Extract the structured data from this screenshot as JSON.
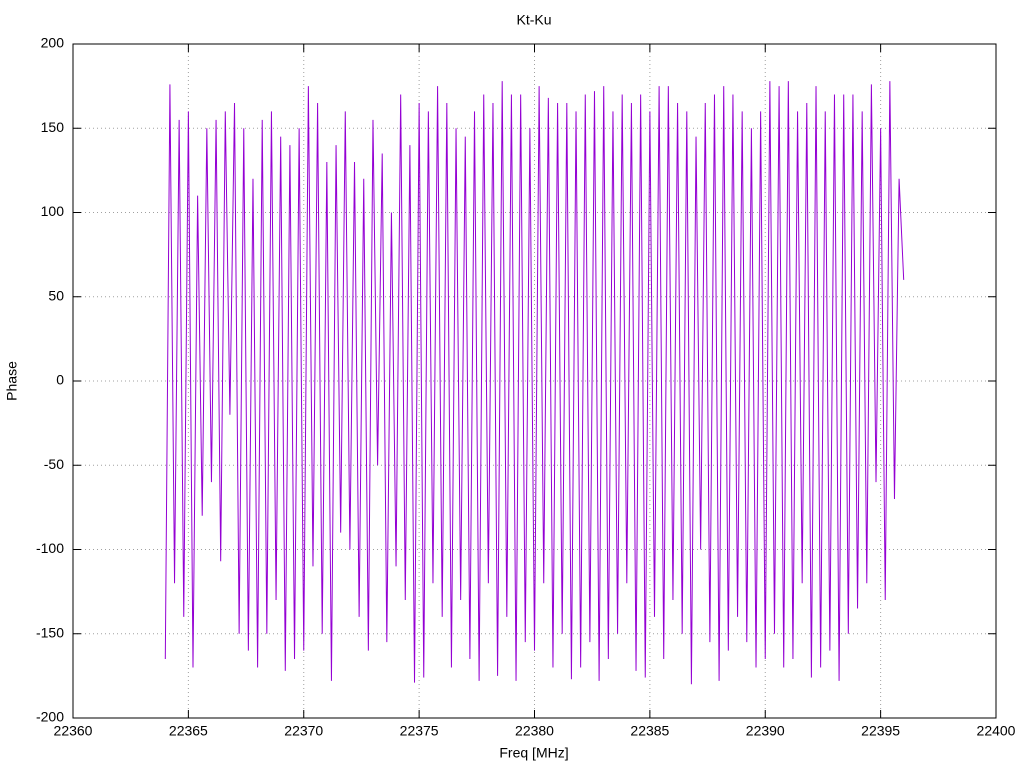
{
  "chart_data": {
    "type": "line",
    "title": "Kt-Ku",
    "x_label": "Freq [MHz]",
    "y_label": "Phase",
    "x": [
      22364,
      22364.2,
      22364.4,
      22364.6,
      22364.8,
      22365,
      22365.2,
      22365.4,
      22365.6,
      22365.8,
      22366,
      22366.2,
      22366.4,
      22366.6,
      22366.8,
      22367,
      22367.2,
      22367.4,
      22367.6,
      22367.8,
      22368,
      22368.2,
      22368.4,
      22368.6,
      22368.8,
      22369,
      22369.2,
      22369.4,
      22369.6,
      22369.8,
      22370,
      22370.2,
      22370.4,
      22370.6,
      22370.8,
      22371,
      22371.2,
      22371.4,
      22371.6,
      22371.8,
      22372,
      22372.2,
      22372.4,
      22372.6,
      22372.8,
      22373,
      22373.2,
      22373.4,
      22373.6,
      22373.8,
      22374,
      22374.2,
      22374.4,
      22374.6,
      22374.8,
      22375,
      22375.2,
      22375.4,
      22375.6,
      22375.8,
      22376,
      22376.2,
      22376.4,
      22376.6,
      22376.8,
      22377,
      22377.2,
      22377.4,
      22377.6,
      22377.8,
      22378,
      22378.2,
      22378.4,
      22378.6,
      22378.8,
      22379,
      22379.2,
      22379.4,
      22379.6,
      22379.8,
      22380,
      22380.2,
      22380.4,
      22380.6,
      22380.8,
      22381,
      22381.2,
      22381.4,
      22381.6,
      22381.8,
      22382,
      22382.2,
      22382.4,
      22382.6,
      22382.8,
      22383,
      22383.2,
      22383.4,
      22383.6,
      22383.8,
      22384,
      22384.2,
      22384.4,
      22384.6,
      22384.8,
      22385,
      22385.2,
      22385.4,
      22385.6,
      22385.8,
      22386,
      22386.2,
      22386.4,
      22386.6,
      22386.8,
      22387,
      22387.2,
      22387.4,
      22387.6,
      22387.8,
      22388,
      22388.2,
      22388.4,
      22388.6,
      22388.8,
      22389,
      22389.2,
      22389.4,
      22389.6,
      22389.8,
      22390,
      22390.2,
      22390.4,
      22390.6,
      22390.8,
      22391,
      22391.2,
      22391.4,
      22391.6,
      22391.8,
      22392,
      22392.2,
      22392.4,
      22392.6,
      22392.8,
      22393,
      22393.2,
      22393.4,
      22393.6,
      22393.8,
      22394,
      22394.2,
      22394.4,
      22394.6,
      22394.8,
      22395,
      22395.2,
      22395.4,
      22395.6,
      22395.8,
      22396
    ],
    "series": [
      {
        "color": "#9400d3",
        "values": [
          -165,
          176,
          -120,
          155,
          -140,
          160,
          -170,
          110,
          -80,
          150,
          -60,
          155,
          -107,
          160,
          -20,
          165,
          -150,
          150,
          -160,
          120,
          -170,
          155,
          -150,
          160,
          -130,
          145,
          -172,
          140,
          -165,
          150,
          -160,
          175,
          -110,
          165,
          -150,
          130,
          -178,
          140,
          -90,
          160,
          -100,
          130,
          -140,
          120,
          -160,
          155,
          -50,
          135,
          -155,
          100,
          -110,
          170,
          -130,
          140,
          -179,
          165,
          -176,
          160,
          -120,
          175,
          -140,
          165,
          -170,
          150,
          -130,
          145,
          -165,
          160,
          -178,
          170,
          -120,
          165,
          -175,
          178,
          -140,
          170,
          -178,
          170,
          -155,
          150,
          -160,
          175,
          -120,
          168,
          -170,
          165,
          -150,
          165,
          -177,
          160,
          -170,
          170,
          -155,
          172,
          -178,
          175,
          -165,
          160,
          -150,
          170,
          -120,
          165,
          -172,
          170,
          -176,
          160,
          -140,
          175,
          -165,
          175,
          -130,
          165,
          -150,
          160,
          -180,
          145,
          -100,
          165,
          -155,
          170,
          -178,
          175,
          -160,
          170,
          -140,
          160,
          -155,
          150,
          -170,
          160,
          -165,
          178,
          -150,
          175,
          -170,
          178,
          -165,
          160,
          -120,
          165,
          -176,
          175,
          -170,
          160,
          -160,
          170,
          -178,
          170,
          -150,
          170,
          -135,
          160,
          -120,
          176,
          -60,
          150,
          -130,
          178,
          -70,
          120,
          60
        ]
      }
    ],
    "xlim": [
      22360,
      22400
    ],
    "xticks": [
      22360,
      22365,
      22370,
      22375,
      22380,
      22385,
      22390,
      22395,
      22400
    ],
    "ylim": [
      -200,
      200
    ],
    "yticks": [
      -200,
      -150,
      -100,
      -50,
      0,
      50,
      100,
      150,
      200
    ],
    "grid": true
  }
}
